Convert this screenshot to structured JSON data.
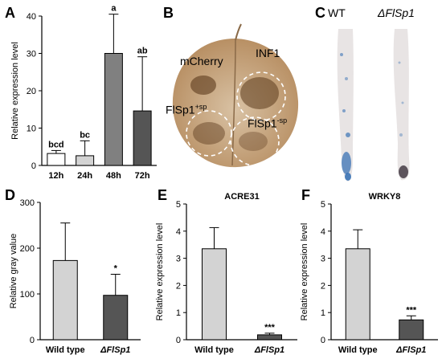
{
  "panel_letters": {
    "A": "A",
    "B": "B",
    "C": "C",
    "D": "D",
    "E": "E",
    "F": "F"
  },
  "panel_b": {
    "labels": {
      "mcherry": "mCherry",
      "inf1": "INF1",
      "flsp1_plus": "FlSp1",
      "flsp1_plus_sup": "+sp",
      "flsp1_minus": "FlSp1",
      "flsp1_minus_sup": "-sp"
    },
    "colors": {
      "leaf": "#b58b5e",
      "leaf_light": "#d9c2a4",
      "lesion": "#5b3a1c",
      "background": "#ffffff"
    }
  },
  "panel_c": {
    "labels": {
      "wt": "WT",
      "mutant": "ΔFlSp1"
    },
    "colors": {
      "root": "#e8e4e4",
      "stain": "#3b73b5",
      "tip_dark": "#3a2f3a"
    }
  },
  "chart_data": [
    {
      "type": "bar",
      "panel": "A",
      "categories": [
        "12h",
        "24h",
        "48h",
        "72h"
      ],
      "values": [
        3.2,
        2.6,
        30.0,
        14.6
      ],
      "errors": [
        0.8,
        4.0,
        10.5,
        14.5
      ],
      "letters": [
        "bcd",
        "bc",
        "a",
        "ab"
      ],
      "bar_colors": [
        "#ffffff",
        "#d3d3d3",
        "#808080",
        "#555555"
      ],
      "ylabel": "Relative expression level",
      "ylim": [
        0,
        40
      ],
      "yticks": [
        0,
        10,
        20,
        30,
        40
      ],
      "title": ""
    },
    {
      "type": "bar",
      "panel": "D",
      "categories": [
        "Wild type",
        "ΔFlSp1"
      ],
      "values": [
        173,
        97
      ],
      "errors": [
        82,
        46
      ],
      "letters": [
        "",
        "*"
      ],
      "bar_colors": [
        "#d3d3d3",
        "#555555"
      ],
      "ylabel": "Relative gray value",
      "ylim": [
        0,
        300
      ],
      "yticks": [
        0,
        100,
        200,
        300
      ],
      "title": ""
    },
    {
      "type": "bar",
      "panel": "E",
      "title": "ACRE31",
      "categories": [
        "Wild type",
        "ΔFlSp1"
      ],
      "values": [
        3.35,
        0.18
      ],
      "errors": [
        0.78,
        0.06
      ],
      "letters": [
        "",
        "***"
      ],
      "bar_colors": [
        "#d3d3d3",
        "#555555"
      ],
      "ylabel": "Relative expression level",
      "ylim": [
        0,
        5
      ],
      "yticks": [
        0,
        1,
        2,
        3,
        4,
        5
      ]
    },
    {
      "type": "bar",
      "panel": "F",
      "title": "WRKY8",
      "categories": [
        "Wild type",
        "ΔFlSp1"
      ],
      "values": [
        3.35,
        0.73
      ],
      "errors": [
        0.7,
        0.15
      ],
      "letters": [
        "",
        "***"
      ],
      "bar_colors": [
        "#d3d3d3",
        "#555555"
      ],
      "ylabel": "Relative expression level",
      "ylim": [
        0,
        5
      ],
      "yticks": [
        0,
        1,
        2,
        3,
        4,
        5
      ]
    }
  ]
}
